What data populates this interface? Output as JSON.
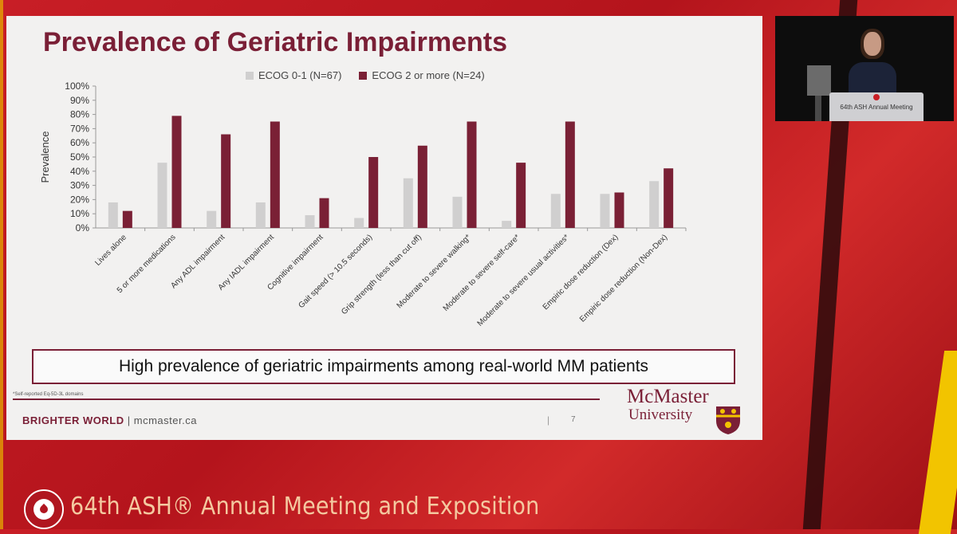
{
  "slide": {
    "title": "Prevalence of Geriatric Impairments",
    "callout": "High prevalence of geriatric impairments among real-world MM patients",
    "footnote": "*Self-reported Eq-5D-3L domains",
    "footer_brand": "BRIGHTER WORLD",
    "footer_sep": "|",
    "footer_site": "mcmaster.ca",
    "page_sep": "|",
    "page_number": "7",
    "logo_line1": "McMaster",
    "logo_line2": "University"
  },
  "conference": {
    "meeting_text": "64th ASH® Annual Meeting and Exposition",
    "podium_text": "64th ASH Annual Meeting"
  },
  "colors": {
    "ecog01": "#d0cfcf",
    "ecog2plus": "#7a2035",
    "title": "#7a1f36",
    "background_red": "#c81e26"
  },
  "chart_data": {
    "type": "bar",
    "title": "",
    "xlabel": "",
    "ylabel": "Prevalence",
    "ylim": [
      0,
      100
    ],
    "y_ticks": [
      "0%",
      "10%",
      "20%",
      "30%",
      "40%",
      "50%",
      "60%",
      "70%",
      "80%",
      "90%",
      "100%"
    ],
    "grid": false,
    "legend_position": "top",
    "categories": [
      "Lives alone",
      "5 or more medications",
      "Any ADL impairment",
      "Any IADL impairment",
      "Cognitive impairment",
      "Gait speed (> 10.5 seconds)",
      "Grip strength (less than cut off)",
      "Moderate to severe walking*",
      "Moderate to severe self-care*",
      "Moderate to severe usual activities*",
      "Empiric dose reduction (Dex)",
      "Empiric dose reduction (Non-Dex)"
    ],
    "series": [
      {
        "name": "ECOG 0-1 (N=67)",
        "values": [
          18,
          46,
          12,
          18,
          9,
          7,
          35,
          22,
          5,
          24,
          24,
          33
        ]
      },
      {
        "name": "ECOG 2 or more (N=24)",
        "values": [
          12,
          79,
          66,
          75,
          21,
          50,
          58,
          75,
          46,
          75,
          25,
          42
        ]
      }
    ]
  }
}
